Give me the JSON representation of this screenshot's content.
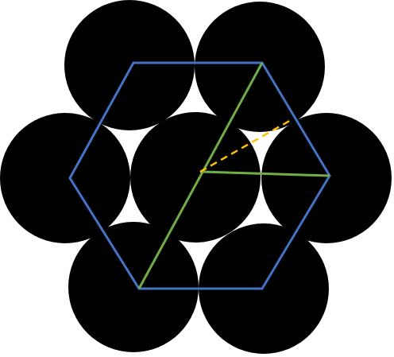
{
  "diagram": {
    "circle_fill": "#000000",
    "background": "#ffffff",
    "hexagon": {
      "stroke": "#4472C4"
    },
    "green_lines": {
      "stroke": "#70AD47"
    },
    "dashed_line": {
      "stroke": "#FFC000",
      "style": "dashed"
    },
    "circles": [
      {
        "name": "circle-top-left"
      },
      {
        "name": "circle-top-right"
      },
      {
        "name": "circle-middle-left"
      },
      {
        "name": "circle-center"
      },
      {
        "name": "circle-middle-right"
      },
      {
        "name": "circle-bottom-left"
      },
      {
        "name": "circle-bottom-right"
      }
    ]
  }
}
